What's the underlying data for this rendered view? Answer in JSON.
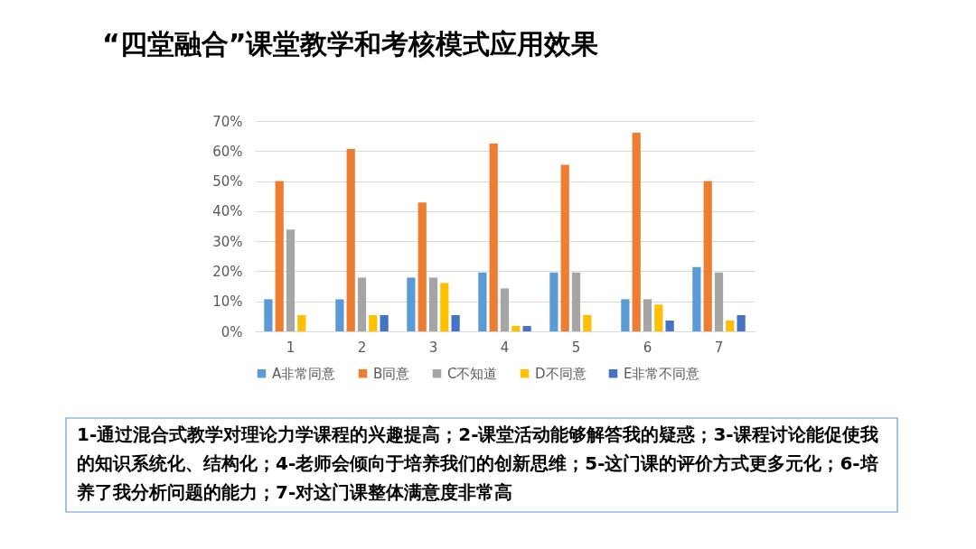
{
  "chart_data": {
    "type": "bar",
    "title": "“四堂融合”课堂教学和考核模式应用效果",
    "categories": [
      "1",
      "2",
      "3",
      "4",
      "5",
      "6",
      "7"
    ],
    "series": [
      {
        "name": "A非常同意",
        "color": "#5b9bd5",
        "values": [
          10.7,
          10.7,
          17.9,
          19.6,
          19.6,
          10.7,
          21.4
        ]
      },
      {
        "name": "B同意",
        "color": "#ed7d31",
        "values": [
          50.0,
          60.7,
          42.9,
          62.5,
          55.4,
          66.1,
          50.0
        ]
      },
      {
        "name": "C不知道",
        "color": "#a5a5a5",
        "values": [
          33.9,
          17.9,
          17.9,
          14.3,
          19.6,
          10.7,
          19.6
        ]
      },
      {
        "name": "D不同意",
        "color": "#ffc000",
        "values": [
          5.4,
          5.4,
          16.1,
          1.8,
          5.4,
          8.9,
          3.6
        ]
      },
      {
        "name": "E非常不同意",
        "color": "#4472c4",
        "values": [
          null,
          5.4,
          5.4,
          1.8,
          null,
          3.6,
          5.4
        ]
      }
    ],
    "ylim": [
      0,
      70
    ],
    "yticks": [
      {
        "value": 0,
        "label": "0%"
      },
      {
        "value": 10,
        "label": "10%"
      },
      {
        "value": 20,
        "label": "20%"
      },
      {
        "value": 30,
        "label": "30%"
      },
      {
        "value": 40,
        "label": "40%"
      },
      {
        "value": 50,
        "label": "50%"
      },
      {
        "value": 60,
        "label": "60%"
      },
      {
        "value": 70,
        "label": "70%"
      }
    ],
    "grid": "y",
    "legend": "bottom",
    "annotations": [
      "1-通过混合式教学对理论力学课程的兴趣提高；2-课堂活动能够解答我的疑惑；3-课程讨论能促使我的知识系统化、结构化；4-老师会倾向于培养我们的创新思维；5-这门课的评价方式更多元化；6-培养了我分析问题的能力；7-对这门课整体满意度非常高"
    ]
  }
}
